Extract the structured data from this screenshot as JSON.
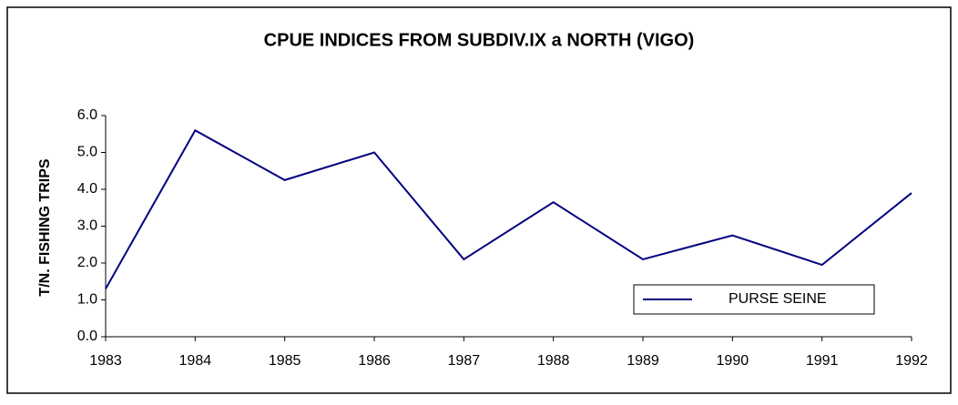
{
  "chart_data": {
    "type": "line",
    "title": "CPUE INDICES FROM SUBDIV.IX a NORTH (VIGO)",
    "y_label": "T/N. FISHING TRIPS",
    "x": [
      1983,
      1984,
      1985,
      1986,
      1987,
      1988,
      1989,
      1990,
      1991,
      1992
    ],
    "xlim": [
      1983,
      1992
    ],
    "xticks": [
      1983,
      1984,
      1985,
      1986,
      1987,
      1988,
      1989,
      1990,
      1991,
      1992
    ],
    "series": [
      {
        "name": "PURSE SEINE",
        "color": "#000080",
        "values": [
          1.3,
          5.6,
          4.25,
          5.0,
          2.1,
          3.65,
          2.1,
          2.75,
          1.95,
          3.9
        ]
      }
    ],
    "ylim": [
      0,
      6
    ],
    "yticks": [
      {
        "value": 0,
        "label": "0.0"
      },
      {
        "value": 1,
        "label": "1.0"
      },
      {
        "value": 2,
        "label": "2.0"
      },
      {
        "value": 3,
        "label": "3.0"
      },
      {
        "value": 4,
        "label": "4.0"
      },
      {
        "value": 5,
        "label": "5.0"
      },
      {
        "value": 6,
        "label": "6.0"
      }
    ],
    "legend": "lower-right"
  }
}
